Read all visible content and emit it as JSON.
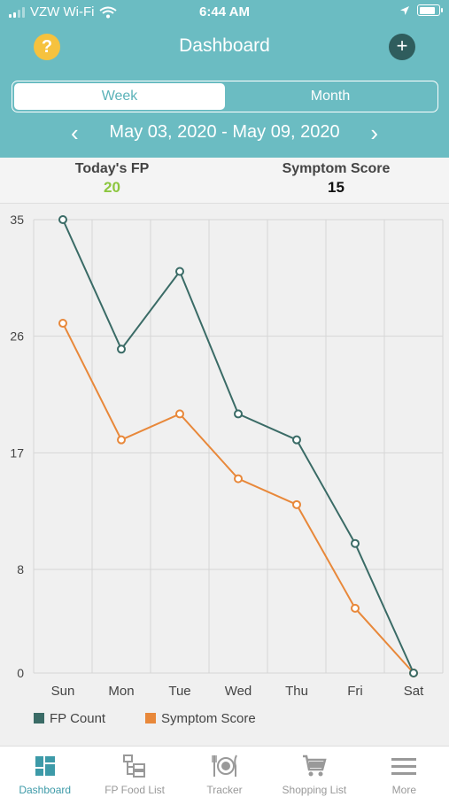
{
  "status": {
    "carrier": "VZW Wi-Fi",
    "time": "6:44 AM"
  },
  "nav": {
    "title": "Dashboard",
    "help_glyph": "?",
    "add_glyph": "+"
  },
  "segment": {
    "options": [
      "Week",
      "Month"
    ],
    "selected": "Week"
  },
  "range": {
    "text": "May 03, 2020 - May 09, 2020",
    "prev_glyph": "‹",
    "next_glyph": "›"
  },
  "summary": {
    "fp_label": "Today's FP",
    "fp_value": "20",
    "score_label": "Symptom Score",
    "score_value": "15"
  },
  "colors": {
    "header": "#6bbcc2",
    "fp_line": "#3a6b66",
    "score_line": "#e8883a",
    "fp_value": "#8cc63f",
    "accent": "#3d9aa8"
  },
  "chart_data": {
    "type": "line",
    "categories": [
      "Sun",
      "Mon",
      "Tue",
      "Wed",
      "Thu",
      "Fri",
      "Sat"
    ],
    "series": [
      {
        "name": "FP Count",
        "values": [
          35,
          25,
          31,
          20,
          18,
          10,
          0
        ]
      },
      {
        "name": "Symptom Score",
        "values": [
          27,
          18,
          20,
          15,
          13,
          5,
          0
        ]
      }
    ],
    "yticks": [
      0,
      8,
      17,
      26,
      35
    ],
    "ylim": [
      0,
      35
    ],
    "grid": true,
    "legend": "bottom-left"
  },
  "tabs": [
    {
      "label": "Dashboard",
      "icon": "dashboard-icon",
      "active": true
    },
    {
      "label": "FP Food List",
      "icon": "food-list-icon",
      "active": false
    },
    {
      "label": "Tracker",
      "icon": "tracker-icon",
      "active": false
    },
    {
      "label": "Shopping List",
      "icon": "cart-icon",
      "active": false
    },
    {
      "label": "More",
      "icon": "menu-icon",
      "active": false
    }
  ]
}
